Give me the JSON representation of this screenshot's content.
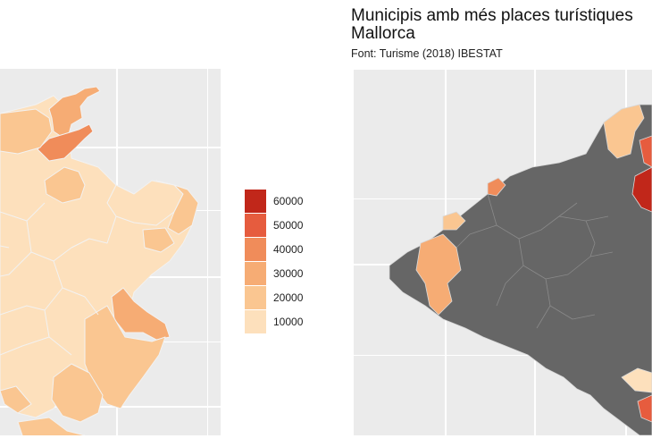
{
  "title": {
    "line1": "Municipis amb més places turístiques",
    "line2": "Mallorca"
  },
  "caption": "Font: Turisme (2018) IBESTAT",
  "legend": {
    "items": [
      {
        "label": "60000",
        "color": "#c1271a"
      },
      {
        "label": "50000",
        "color": "#e65c3e"
      },
      {
        "label": "40000",
        "color": "#f08c5a"
      },
      {
        "label": "30000",
        "color": "#f6ac74"
      },
      {
        "label": "20000",
        "color": "#fac691"
      },
      {
        "label": "10000",
        "color": "#fde0bc"
      }
    ]
  },
  "colors": {
    "panel_background": "#ebebeb",
    "gridline": "#ffffff",
    "no_data_region": "#666666",
    "border": "#f2f2f2"
  }
}
